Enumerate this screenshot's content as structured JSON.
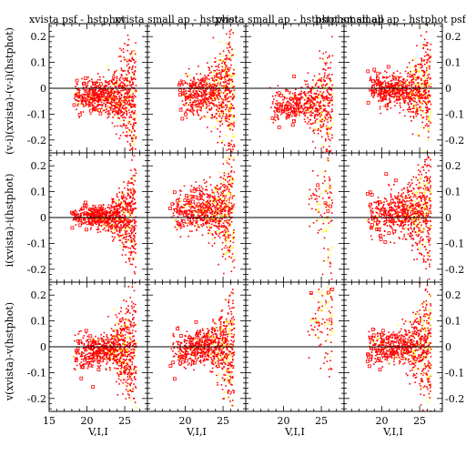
{
  "chart_data": {
    "type": "scatter",
    "layout": {
      "rows": 3,
      "cols": 4
    },
    "col_titles": [
      "xvista psf - hstphot",
      "xvista small ap - hstphot",
      "xvista small ap - hstphot small ap",
      "hstphot small ap - hstphot psf"
    ],
    "row_ylabels": [
      "(v-i)(xvista)-(v-i)(hstphot)",
      "i(xvista)-i(hstphot)",
      "v(xvista)-v(hstphot)"
    ],
    "xlabel": "V,I,I",
    "xlim": [
      15,
      28
    ],
    "ylim": [
      -0.25,
      0.25
    ],
    "xticks": [
      15,
      20,
      25
    ],
    "yticks": [
      -0.2,
      -0.1,
      0,
      0.1,
      0.2
    ],
    "ytick_labels": [
      "-0.2",
      "-0.1",
      "0",
      "0.1",
      "0.2"
    ],
    "reference_line_y": 0,
    "series": [
      {
        "name": "",
        "color": "#ff0000",
        "marker": "point"
      },
      {
        "name": "",
        "color": "#ffff00",
        "marker": "point"
      }
    ],
    "panels": [
      {
        "row": 0,
        "col": 0,
        "center_offset": -0.03,
        "bright_offset": -0.03,
        "spread": 0.03,
        "faint_spread": 0.13,
        "density": 1.0,
        "yellow_frac": 0.1,
        "x_min": 18
      },
      {
        "row": 0,
        "col": 1,
        "center_offset": -0.02,
        "bright_offset": -0.02,
        "spread": 0.04,
        "faint_spread": 0.16,
        "density": 0.85,
        "yellow_frac": 0.18,
        "x_min": 19
      },
      {
        "row": 0,
        "col": 2,
        "center_offset": -0.06,
        "bright_offset": -0.08,
        "spread": 0.03,
        "faint_spread": 0.14,
        "density": 0.7,
        "yellow_frac": 0.1,
        "x_min": 18
      },
      {
        "row": 0,
        "col": 3,
        "center_offset": -0.01,
        "bright_offset": 0.0,
        "spread": 0.03,
        "faint_spread": 0.15,
        "density": 0.9,
        "yellow_frac": 0.15,
        "x_min": 18
      },
      {
        "row": 1,
        "col": 0,
        "center_offset": 0.0,
        "bright_offset": 0.01,
        "spread": 0.02,
        "faint_spread": 0.12,
        "density": 1.0,
        "yellow_frac": 0.08,
        "x_min": 18
      },
      {
        "row": 1,
        "col": 1,
        "center_offset": 0.03,
        "bright_offset": 0.02,
        "spread": 0.04,
        "faint_spread": 0.14,
        "density": 0.9,
        "yellow_frac": 0.18,
        "x_min": 18
      },
      {
        "row": 1,
        "col": 2,
        "center_offset": 0.05,
        "bright_offset": 0.05,
        "spread": 0.04,
        "faint_spread": 0.15,
        "density": 0.12,
        "yellow_frac": 0.3,
        "x_min": 23
      },
      {
        "row": 1,
        "col": 3,
        "center_offset": 0.02,
        "bright_offset": 0.0,
        "spread": 0.04,
        "faint_spread": 0.14,
        "density": 0.9,
        "yellow_frac": 0.15,
        "x_min": 18
      },
      {
        "row": 2,
        "col": 0,
        "center_offset": -0.01,
        "bright_offset": -0.02,
        "spread": 0.03,
        "faint_spread": 0.14,
        "density": 1.0,
        "yellow_frac": 0.1,
        "x_min": 18
      },
      {
        "row": 2,
        "col": 1,
        "center_offset": 0.0,
        "bright_offset": -0.01,
        "spread": 0.03,
        "faint_spread": 0.14,
        "density": 0.9,
        "yellow_frac": 0.15,
        "x_min": 18
      },
      {
        "row": 2,
        "col": 2,
        "center_offset": 0.12,
        "bright_offset": 0.2,
        "spread": 0.05,
        "faint_spread": 0.15,
        "density": 0.12,
        "yellow_frac": 0.3,
        "x_min": 23
      },
      {
        "row": 2,
        "col": 3,
        "center_offset": 0.0,
        "bright_offset": 0.0,
        "spread": 0.03,
        "faint_spread": 0.14,
        "density": 0.9,
        "yellow_frac": 0.15,
        "x_min": 18
      }
    ]
  }
}
